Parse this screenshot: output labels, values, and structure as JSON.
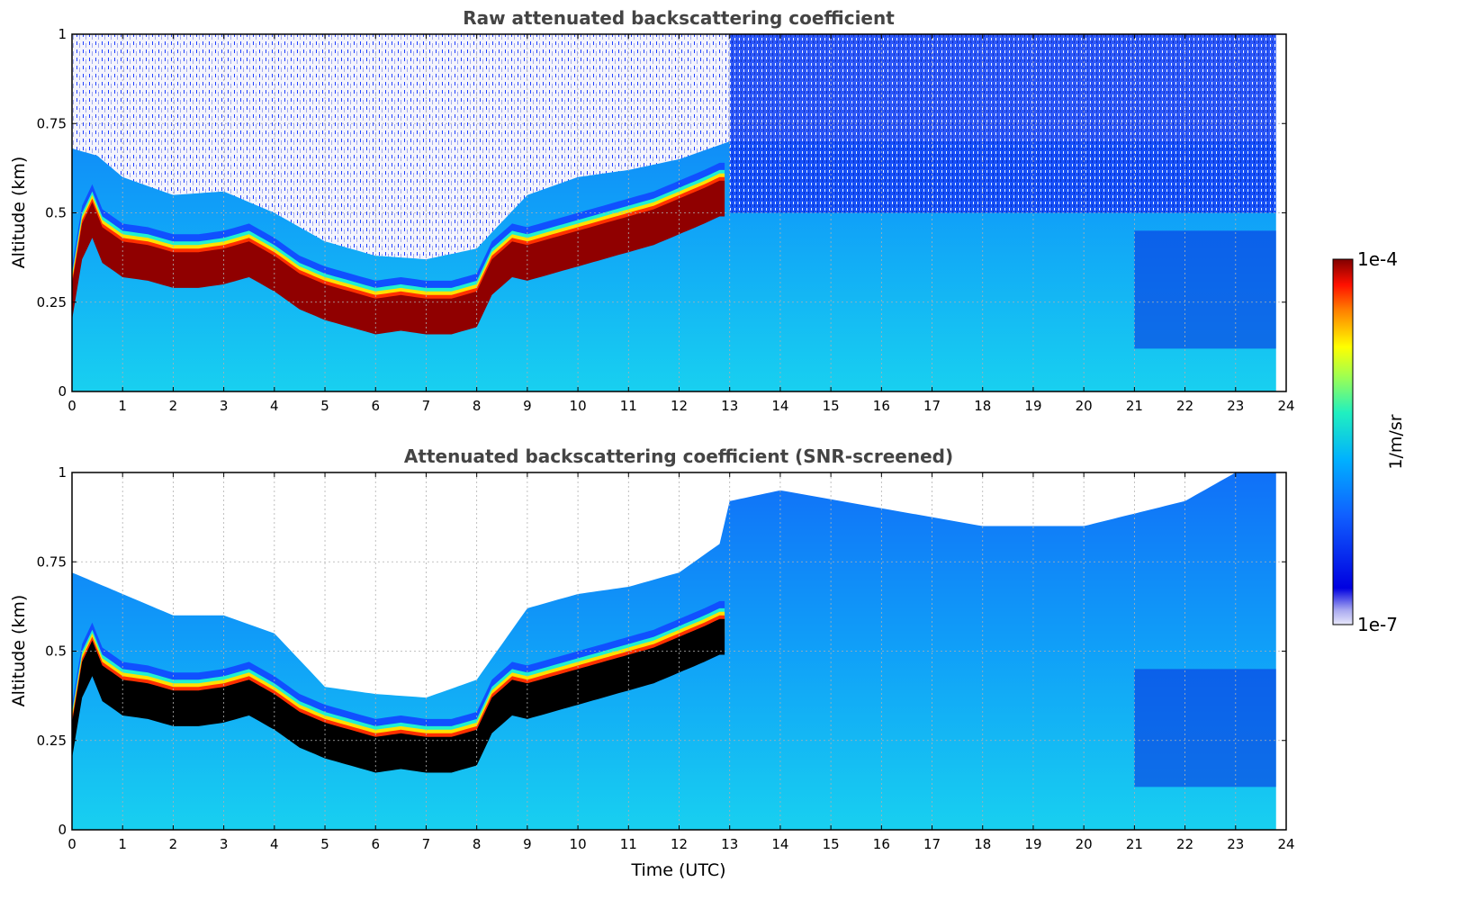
{
  "chart_data": [
    {
      "type": "heatmap",
      "title": "Raw attenuated backscattering coefficient",
      "xlabel": "",
      "ylabel": "Altitude (km)",
      "xlim": [
        0,
        24
      ],
      "ylim": [
        0,
        1
      ],
      "x_ticks": [
        "0",
        "1",
        "2",
        "3",
        "4",
        "5",
        "6",
        "7",
        "8",
        "9",
        "10",
        "11",
        "12",
        "13",
        "14",
        "15",
        "16",
        "17",
        "18",
        "19",
        "20",
        "21",
        "22",
        "23",
        "24"
      ],
      "y_ticks": [
        "0",
        "0.25",
        "0.5",
        "0.75",
        "1"
      ],
      "grid": true,
      "data_end_hour": 23.8,
      "boundary_layer_top_km": [
        [
          0.0,
          0.33
        ],
        [
          0.2,
          0.5
        ],
        [
          0.4,
          0.56
        ],
        [
          0.6,
          0.49
        ],
        [
          0.8,
          0.47
        ],
        [
          1.0,
          0.45
        ],
        [
          1.5,
          0.44
        ],
        [
          2.0,
          0.42
        ],
        [
          2.5,
          0.42
        ],
        [
          3.0,
          0.43
        ],
        [
          3.5,
          0.45
        ],
        [
          4.0,
          0.41
        ],
        [
          4.5,
          0.36
        ],
        [
          5.0,
          0.33
        ],
        [
          5.5,
          0.31
        ],
        [
          6.0,
          0.29
        ],
        [
          6.5,
          0.3
        ],
        [
          7.0,
          0.29
        ],
        [
          7.5,
          0.29
        ],
        [
          8.0,
          0.31
        ],
        [
          8.3,
          0.4
        ],
        [
          8.7,
          0.45
        ],
        [
          9.0,
          0.44
        ],
        [
          9.5,
          0.46
        ],
        [
          10.0,
          0.48
        ],
        [
          10.5,
          0.5
        ],
        [
          11.0,
          0.52
        ],
        [
          11.5,
          0.54
        ],
        [
          12.0,
          0.57
        ],
        [
          12.5,
          0.6
        ],
        [
          12.8,
          0.62
        ]
      ],
      "noise_onset_km": [
        [
          0.0,
          0.68
        ],
        [
          0.5,
          0.66
        ],
        [
          1.0,
          0.6
        ],
        [
          2.0,
          0.55
        ],
        [
          3.0,
          0.56
        ],
        [
          4.0,
          0.5
        ],
        [
          5.0,
          0.42
        ],
        [
          6.0,
          0.38
        ],
        [
          7.0,
          0.37
        ],
        [
          8.0,
          0.4
        ],
        [
          9.0,
          0.55
        ],
        [
          10.0,
          0.6
        ],
        [
          11.0,
          0.62
        ],
        [
          12.0,
          0.65
        ],
        [
          13.0,
          0.7
        ]
      ],
      "colorbar": {
        "label": "1/m/sr",
        "max_label": "1e-4",
        "min_label": "1e-7",
        "scale": "log",
        "colormap": "jet"
      }
    },
    {
      "type": "heatmap",
      "title": "Attenuated backscattering coefficient (SNR-screened)",
      "xlabel": "Time (UTC)",
      "ylabel": "Altitude (km)",
      "xlim": [
        0,
        24
      ],
      "ylim": [
        0,
        1
      ],
      "x_ticks": [
        "0",
        "1",
        "2",
        "3",
        "4",
        "5",
        "6",
        "7",
        "8",
        "9",
        "10",
        "11",
        "12",
        "13",
        "14",
        "15",
        "16",
        "17",
        "18",
        "19",
        "20",
        "21",
        "22",
        "23",
        "24"
      ],
      "y_ticks": [
        "0",
        "0.25",
        "0.5",
        "0.75",
        "1"
      ],
      "grid": true,
      "data_end_hour": 23.8,
      "screened_above_km": [
        [
          0.0,
          0.72
        ],
        [
          1.0,
          0.66
        ],
        [
          2.0,
          0.6
        ],
        [
          3.0,
          0.6
        ],
        [
          4.0,
          0.55
        ],
        [
          5.0,
          0.4
        ],
        [
          6.0,
          0.38
        ],
        [
          7.0,
          0.37
        ],
        [
          8.0,
          0.42
        ],
        [
          9.0,
          0.62
        ],
        [
          10.0,
          0.66
        ],
        [
          11.0,
          0.68
        ],
        [
          12.0,
          0.72
        ],
        [
          12.8,
          0.8
        ],
        [
          13.0,
          0.92
        ],
        [
          14.0,
          0.95
        ],
        [
          16.0,
          0.9
        ],
        [
          18.0,
          0.85
        ],
        [
          20.0,
          0.85
        ],
        [
          22.0,
          0.92
        ],
        [
          23.0,
          1.0
        ]
      ]
    }
  ]
}
